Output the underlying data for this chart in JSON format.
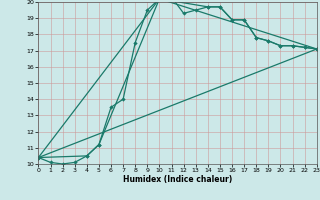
{
  "xlabel": "Humidex (Indice chaleur)",
  "bg_color": "#cce8e8",
  "grid_color": "#b0d0d0",
  "line_color": "#1a7a6a",
  "xlim": [
    0,
    23
  ],
  "ylim": [
    10,
    20
  ],
  "xticks": [
    0,
    1,
    2,
    3,
    4,
    5,
    6,
    7,
    8,
    9,
    10,
    11,
    12,
    13,
    14,
    15,
    16,
    17,
    18,
    19,
    20,
    21,
    22,
    23
  ],
  "yticks": [
    10,
    11,
    12,
    13,
    14,
    15,
    16,
    17,
    18,
    19,
    20
  ],
  "line1_x": [
    0,
    1,
    2,
    3,
    4,
    5,
    6,
    7,
    8,
    9,
    10,
    11,
    12,
    13,
    14,
    15,
    16,
    17,
    18,
    19,
    20,
    21,
    22,
    23
  ],
  "line1_y": [
    10.4,
    10.1,
    10.0,
    10.1,
    10.5,
    11.2,
    13.5,
    14.0,
    17.5,
    19.5,
    20.2,
    20.3,
    19.3,
    19.5,
    19.7,
    19.7,
    18.9,
    18.9,
    17.8,
    17.6,
    17.3,
    17.3,
    17.2,
    17.1
  ],
  "line2_x": [
    0,
    4,
    5,
    10,
    14,
    15,
    16,
    17,
    18,
    19,
    20,
    21,
    22,
    23
  ],
  "line2_y": [
    10.4,
    10.5,
    11.2,
    20.2,
    19.7,
    19.7,
    18.9,
    18.9,
    17.8,
    17.6,
    17.3,
    17.3,
    17.2,
    17.1
  ],
  "line3_x": [
    0,
    10,
    23
  ],
  "line3_y": [
    10.4,
    20.2,
    17.1
  ],
  "line4_x": [
    0,
    23
  ],
  "line4_y": [
    10.4,
    17.1
  ]
}
